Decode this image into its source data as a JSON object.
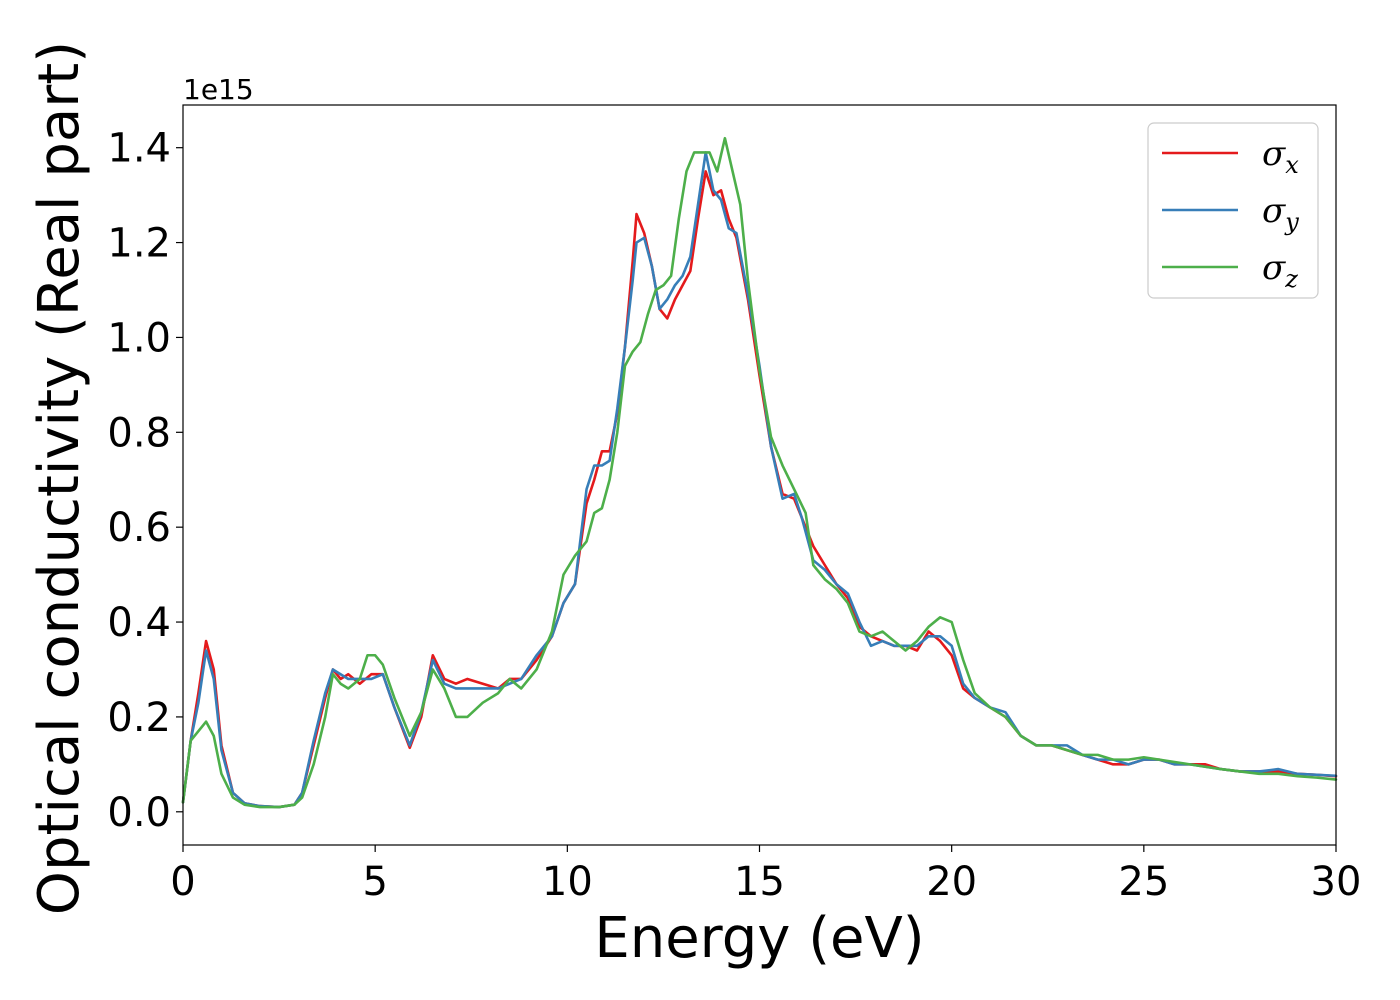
{
  "chart_data": {
    "type": "line",
    "xlabel": "Energy (eV)",
    "ylabel": "Optical conductivity (Real part)",
    "y_offset_label": "1e15",
    "xlim": [
      0,
      30
    ],
    "ylim": [
      -0.07,
      1.49
    ],
    "x_ticks": [
      "0",
      "5",
      "10",
      "15",
      "20",
      "25",
      "30"
    ],
    "y_ticks": [
      "0.0",
      "0.2",
      "0.4",
      "0.6",
      "0.8",
      "1.0",
      "1.2",
      "1.4"
    ],
    "grid": false,
    "legend_position": "top-right",
    "series": [
      {
        "name": "σx",
        "symbol": "σ",
        "sub": "x",
        "color": "#e41a1c",
        "points": [
          [
            0,
            0.02
          ],
          [
            0.2,
            0.15
          ],
          [
            0.4,
            0.25
          ],
          [
            0.6,
            0.36
          ],
          [
            0.8,
            0.3
          ],
          [
            1.0,
            0.14
          ],
          [
            1.3,
            0.04
          ],
          [
            1.6,
            0.018
          ],
          [
            2.0,
            0.012
          ],
          [
            2.5,
            0.01
          ],
          [
            2.9,
            0.015
          ],
          [
            3.1,
            0.04
          ],
          [
            3.4,
            0.14
          ],
          [
            3.7,
            0.24
          ],
          [
            3.9,
            0.3
          ],
          [
            4.1,
            0.28
          ],
          [
            4.3,
            0.29
          ],
          [
            4.6,
            0.27
          ],
          [
            4.9,
            0.29
          ],
          [
            5.2,
            0.29
          ],
          [
            5.5,
            0.22
          ],
          [
            5.9,
            0.135
          ],
          [
            6.2,
            0.2
          ],
          [
            6.5,
            0.33
          ],
          [
            6.8,
            0.28
          ],
          [
            7.1,
            0.27
          ],
          [
            7.4,
            0.28
          ],
          [
            7.8,
            0.27
          ],
          [
            8.2,
            0.26
          ],
          [
            8.5,
            0.28
          ],
          [
            8.8,
            0.28
          ],
          [
            9.2,
            0.32
          ],
          [
            9.6,
            0.37
          ],
          [
            9.9,
            0.44
          ],
          [
            10.2,
            0.48
          ],
          [
            10.5,
            0.65
          ],
          [
            10.7,
            0.7
          ],
          [
            10.9,
            0.76
          ],
          [
            11.1,
            0.76
          ],
          [
            11.3,
            0.84
          ],
          [
            11.5,
            0.98
          ],
          [
            11.7,
            1.16
          ],
          [
            11.8,
            1.26
          ],
          [
            12.0,
            1.22
          ],
          [
            12.2,
            1.15
          ],
          [
            12.4,
            1.06
          ],
          [
            12.6,
            1.04
          ],
          [
            12.8,
            1.08
          ],
          [
            13.0,
            1.11
          ],
          [
            13.2,
            1.14
          ],
          [
            13.4,
            1.25
          ],
          [
            13.6,
            1.35
          ],
          [
            13.8,
            1.3
          ],
          [
            14.0,
            1.31
          ],
          [
            14.2,
            1.25
          ],
          [
            14.4,
            1.21
          ],
          [
            14.7,
            1.08
          ],
          [
            15.0,
            0.92
          ],
          [
            15.3,
            0.77
          ],
          [
            15.6,
            0.67
          ],
          [
            15.9,
            0.66
          ],
          [
            16.1,
            0.62
          ],
          [
            16.4,
            0.56
          ],
          [
            16.7,
            0.52
          ],
          [
            17.0,
            0.48
          ],
          [
            17.3,
            0.45
          ],
          [
            17.6,
            0.39
          ],
          [
            17.9,
            0.37
          ],
          [
            18.2,
            0.36
          ],
          [
            18.5,
            0.35
          ],
          [
            18.8,
            0.35
          ],
          [
            19.1,
            0.34
          ],
          [
            19.4,
            0.38
          ],
          [
            19.7,
            0.36
          ],
          [
            20.0,
            0.33
          ],
          [
            20.3,
            0.26
          ],
          [
            20.6,
            0.24
          ],
          [
            21.0,
            0.22
          ],
          [
            21.4,
            0.2
          ],
          [
            21.8,
            0.16
          ],
          [
            22.2,
            0.14
          ],
          [
            22.6,
            0.14
          ],
          [
            23.0,
            0.13
          ],
          [
            23.4,
            0.12
          ],
          [
            23.8,
            0.11
          ],
          [
            24.2,
            0.1
          ],
          [
            24.6,
            0.1
          ],
          [
            25.0,
            0.11
          ],
          [
            25.4,
            0.11
          ],
          [
            25.8,
            0.1
          ],
          [
            26.2,
            0.1
          ],
          [
            26.6,
            0.1
          ],
          [
            27.0,
            0.09
          ],
          [
            27.5,
            0.085
          ],
          [
            28.0,
            0.085
          ],
          [
            28.5,
            0.085
          ],
          [
            29.0,
            0.08
          ],
          [
            29.5,
            0.078
          ],
          [
            30.0,
            0.075
          ]
        ]
      },
      {
        "name": "σy",
        "symbol": "σ",
        "sub": "y",
        "color": "#377eb8",
        "points": [
          [
            0,
            0.02
          ],
          [
            0.2,
            0.15
          ],
          [
            0.4,
            0.23
          ],
          [
            0.6,
            0.34
          ],
          [
            0.8,
            0.28
          ],
          [
            1.0,
            0.13
          ],
          [
            1.3,
            0.04
          ],
          [
            1.6,
            0.018
          ],
          [
            2.0,
            0.012
          ],
          [
            2.5,
            0.01
          ],
          [
            2.9,
            0.015
          ],
          [
            3.1,
            0.04
          ],
          [
            3.4,
            0.15
          ],
          [
            3.7,
            0.25
          ],
          [
            3.9,
            0.3
          ],
          [
            4.1,
            0.29
          ],
          [
            4.3,
            0.28
          ],
          [
            4.6,
            0.28
          ],
          [
            4.9,
            0.28
          ],
          [
            5.2,
            0.29
          ],
          [
            5.5,
            0.22
          ],
          [
            5.9,
            0.14
          ],
          [
            6.2,
            0.21
          ],
          [
            6.5,
            0.32
          ],
          [
            6.8,
            0.27
          ],
          [
            7.1,
            0.26
          ],
          [
            7.4,
            0.26
          ],
          [
            7.8,
            0.26
          ],
          [
            8.2,
            0.26
          ],
          [
            8.5,
            0.27
          ],
          [
            8.8,
            0.28
          ],
          [
            9.2,
            0.33
          ],
          [
            9.6,
            0.37
          ],
          [
            9.9,
            0.44
          ],
          [
            10.2,
            0.48
          ],
          [
            10.5,
            0.68
          ],
          [
            10.7,
            0.73
          ],
          [
            10.9,
            0.73
          ],
          [
            11.1,
            0.74
          ],
          [
            11.3,
            0.85
          ],
          [
            11.5,
            0.98
          ],
          [
            11.7,
            1.12
          ],
          [
            11.8,
            1.2
          ],
          [
            12.0,
            1.21
          ],
          [
            12.2,
            1.15
          ],
          [
            12.4,
            1.06
          ],
          [
            12.6,
            1.08
          ],
          [
            12.8,
            1.11
          ],
          [
            13.0,
            1.13
          ],
          [
            13.2,
            1.17
          ],
          [
            13.4,
            1.28
          ],
          [
            13.6,
            1.39
          ],
          [
            13.8,
            1.31
          ],
          [
            14.0,
            1.29
          ],
          [
            14.2,
            1.23
          ],
          [
            14.4,
            1.22
          ],
          [
            14.7,
            1.09
          ],
          [
            15.0,
            0.94
          ],
          [
            15.3,
            0.77
          ],
          [
            15.6,
            0.66
          ],
          [
            15.9,
            0.67
          ],
          [
            16.1,
            0.62
          ],
          [
            16.4,
            0.53
          ],
          [
            16.7,
            0.51
          ],
          [
            17.0,
            0.48
          ],
          [
            17.3,
            0.46
          ],
          [
            17.6,
            0.4
          ],
          [
            17.9,
            0.35
          ],
          [
            18.2,
            0.36
          ],
          [
            18.5,
            0.35
          ],
          [
            18.8,
            0.35
          ],
          [
            19.1,
            0.35
          ],
          [
            19.4,
            0.37
          ],
          [
            19.7,
            0.37
          ],
          [
            20.0,
            0.35
          ],
          [
            20.3,
            0.27
          ],
          [
            20.6,
            0.24
          ],
          [
            21.0,
            0.22
          ],
          [
            21.4,
            0.21
          ],
          [
            21.8,
            0.16
          ],
          [
            22.2,
            0.14
          ],
          [
            22.6,
            0.14
          ],
          [
            23.0,
            0.14
          ],
          [
            23.4,
            0.12
          ],
          [
            23.8,
            0.11
          ],
          [
            24.2,
            0.11
          ],
          [
            24.6,
            0.1
          ],
          [
            25.0,
            0.11
          ],
          [
            25.4,
            0.11
          ],
          [
            25.8,
            0.1
          ],
          [
            26.2,
            0.1
          ],
          [
            26.6,
            0.095
          ],
          [
            27.0,
            0.09
          ],
          [
            27.5,
            0.085
          ],
          [
            28.0,
            0.085
          ],
          [
            28.5,
            0.09
          ],
          [
            29.0,
            0.08
          ],
          [
            29.5,
            0.078
          ],
          [
            30.0,
            0.076
          ]
        ]
      },
      {
        "name": "σz",
        "symbol": "σ",
        "sub": "z",
        "color": "#4daf4a",
        "points": [
          [
            0,
            0.02
          ],
          [
            0.2,
            0.15
          ],
          [
            0.4,
            0.17
          ],
          [
            0.6,
            0.19
          ],
          [
            0.8,
            0.16
          ],
          [
            1.0,
            0.08
          ],
          [
            1.3,
            0.03
          ],
          [
            1.6,
            0.015
          ],
          [
            2.0,
            0.01
          ],
          [
            2.5,
            0.01
          ],
          [
            2.9,
            0.015
          ],
          [
            3.1,
            0.03
          ],
          [
            3.4,
            0.1
          ],
          [
            3.7,
            0.2
          ],
          [
            3.9,
            0.29
          ],
          [
            4.1,
            0.27
          ],
          [
            4.3,
            0.26
          ],
          [
            4.6,
            0.28
          ],
          [
            4.8,
            0.33
          ],
          [
            5.0,
            0.33
          ],
          [
            5.2,
            0.31
          ],
          [
            5.5,
            0.24
          ],
          [
            5.9,
            0.16
          ],
          [
            6.2,
            0.21
          ],
          [
            6.5,
            0.3
          ],
          [
            6.8,
            0.26
          ],
          [
            7.1,
            0.2
          ],
          [
            7.4,
            0.2
          ],
          [
            7.8,
            0.23
          ],
          [
            8.2,
            0.25
          ],
          [
            8.5,
            0.28
          ],
          [
            8.8,
            0.26
          ],
          [
            9.2,
            0.3
          ],
          [
            9.6,
            0.38
          ],
          [
            9.9,
            0.5
          ],
          [
            10.2,
            0.54
          ],
          [
            10.5,
            0.57
          ],
          [
            10.7,
            0.63
          ],
          [
            10.9,
            0.64
          ],
          [
            11.1,
            0.7
          ],
          [
            11.3,
            0.8
          ],
          [
            11.5,
            0.94
          ],
          [
            11.7,
            0.97
          ],
          [
            11.9,
            0.99
          ],
          [
            12.1,
            1.05
          ],
          [
            12.3,
            1.1
          ],
          [
            12.5,
            1.11
          ],
          [
            12.7,
            1.13
          ],
          [
            12.9,
            1.25
          ],
          [
            13.1,
            1.35
          ],
          [
            13.3,
            1.39
          ],
          [
            13.5,
            1.39
          ],
          [
            13.7,
            1.39
          ],
          [
            13.9,
            1.35
          ],
          [
            14.1,
            1.42
          ],
          [
            14.3,
            1.35
          ],
          [
            14.5,
            1.28
          ],
          [
            14.7,
            1.12
          ],
          [
            15.0,
            0.93
          ],
          [
            15.3,
            0.79
          ],
          [
            15.6,
            0.73
          ],
          [
            15.9,
            0.68
          ],
          [
            16.2,
            0.63
          ],
          [
            16.4,
            0.52
          ],
          [
            16.7,
            0.49
          ],
          [
            17.0,
            0.47
          ],
          [
            17.3,
            0.44
          ],
          [
            17.6,
            0.38
          ],
          [
            17.9,
            0.37
          ],
          [
            18.2,
            0.38
          ],
          [
            18.5,
            0.36
          ],
          [
            18.8,
            0.34
          ],
          [
            19.1,
            0.36
          ],
          [
            19.4,
            0.39
          ],
          [
            19.7,
            0.41
          ],
          [
            20.0,
            0.4
          ],
          [
            20.3,
            0.32
          ],
          [
            20.6,
            0.25
          ],
          [
            21.0,
            0.22
          ],
          [
            21.4,
            0.2
          ],
          [
            21.8,
            0.16
          ],
          [
            22.2,
            0.14
          ],
          [
            22.6,
            0.14
          ],
          [
            23.0,
            0.13
          ],
          [
            23.4,
            0.12
          ],
          [
            23.8,
            0.12
          ],
          [
            24.2,
            0.11
          ],
          [
            24.6,
            0.11
          ],
          [
            25.0,
            0.115
          ],
          [
            25.4,
            0.11
          ],
          [
            25.8,
            0.105
          ],
          [
            26.2,
            0.1
          ],
          [
            26.6,
            0.095
          ],
          [
            27.0,
            0.09
          ],
          [
            27.5,
            0.085
          ],
          [
            28.0,
            0.08
          ],
          [
            28.5,
            0.08
          ],
          [
            29.0,
            0.075
          ],
          [
            29.5,
            0.072
          ],
          [
            30.0,
            0.068
          ]
        ]
      }
    ]
  }
}
